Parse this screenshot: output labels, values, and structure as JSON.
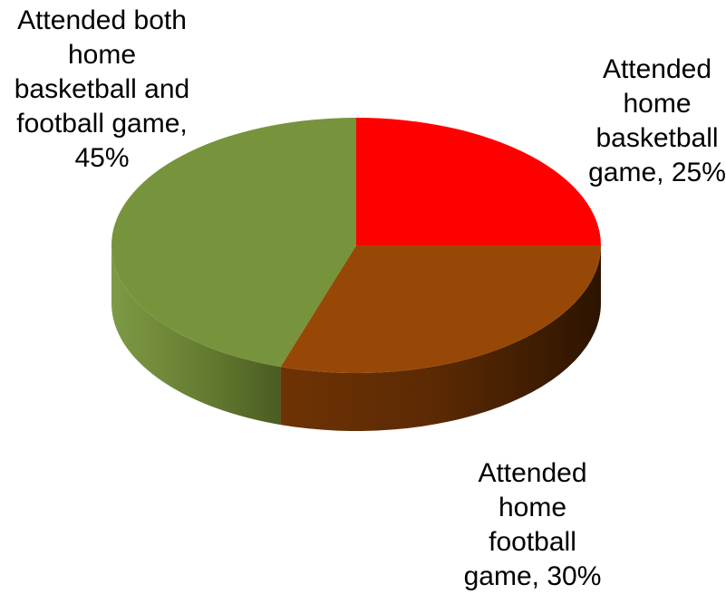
{
  "chart_data": {
    "type": "pie",
    "style": "3d",
    "title": "",
    "categories": [
      "Attended home basketball game",
      "Attended home football game",
      "Attended both home basketball and football game"
    ],
    "values": [
      25,
      30,
      45
    ],
    "unit": "%",
    "colors": [
      "#ff0000",
      "#984806",
      "#77933c"
    ],
    "data_labels": [
      "Attended\nhome\nbasketball\ngame, 25%",
      "Attended\nhome football\ngame, 30%",
      "Attended both\nhome\nbasketball and\nfootball game,\n45%"
    ],
    "legend": "none",
    "grid": false
  }
}
